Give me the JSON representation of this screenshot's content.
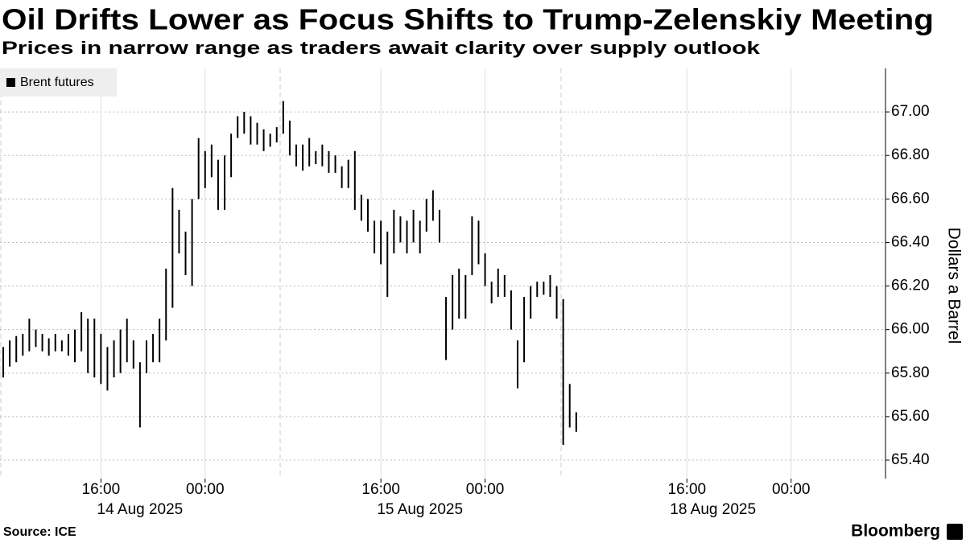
{
  "chart_data": {
    "type": "hilo",
    "title": "Oil Drifts Lower as Focus Shifts to Trump-Zelenskiy Meeting",
    "subtitle": "Prices in narrow range as traders await clarity over supply outlook",
    "y_label": "Dollars a Barrel",
    "source": "Source: ICE",
    "brand": "Bloomberg",
    "categories": [
      null,
      null,
      null,
      null,
      null,
      null,
      null,
      null,
      null,
      null,
      null,
      null,
      null,
      null,
      null,
      "16:00",
      null,
      null,
      null,
      null,
      null,
      null,
      null,
      null,
      null,
      null,
      null,
      null,
      null,
      null,
      null,
      "00:00",
      null,
      null,
      null,
      null,
      null,
      null,
      null,
      null,
      null,
      null,
      null,
      null,
      null,
      null,
      null,
      null,
      null,
      null,
      null,
      null,
      null,
      null,
      null,
      null,
      null,
      null,
      "16:00",
      null,
      null,
      null,
      null,
      null,
      null,
      null,
      null,
      null,
      null,
      null,
      null,
      null,
      null,
      null,
      "00:00",
      null,
      null,
      null,
      null,
      null,
      null,
      null,
      null,
      null,
      null,
      null,
      null,
      null,
      null,
      null,
      null,
      null,
      null,
      null,
      null,
      null,
      null,
      null,
      null,
      null,
      null,
      null,
      null,
      null,
      null,
      "16:00",
      null,
      null,
      null,
      null,
      null,
      null,
      null,
      null,
      null,
      null,
      null,
      null,
      null,
      null,
      null,
      "00:00",
      null,
      null,
      null,
      null,
      null,
      null,
      null,
      null,
      null,
      null,
      null,
      null,
      null,
      null
    ],
    "category_dates": [
      null,
      null,
      null,
      null,
      null,
      null,
      null,
      null,
      null,
      null,
      null,
      null,
      null,
      null,
      null,
      null,
      null,
      null,
      null,
      null,
      null,
      "14 Aug 2025",
      null,
      null,
      null,
      null,
      null,
      null,
      null,
      null,
      null,
      null,
      null,
      null,
      null,
      null,
      null,
      null,
      null,
      null,
      null,
      null,
      null,
      null,
      null,
      null,
      null,
      null,
      null,
      null,
      null,
      null,
      null,
      null,
      null,
      null,
      null,
      null,
      null,
      null,
      null,
      null,
      null,
      null,
      "15 Aug 2025",
      null,
      null,
      null,
      null,
      null,
      null,
      null,
      null,
      null,
      null,
      null,
      null,
      null,
      null,
      null,
      null,
      null,
      null,
      null,
      null,
      null,
      null,
      null,
      null,
      null,
      null,
      null,
      null,
      null,
      null,
      null,
      null,
      null,
      null,
      null,
      null,
      null,
      null,
      null,
      null,
      null,
      null,
      null,
      null,
      "18 Aug 2025",
      null,
      null,
      null,
      null,
      null,
      null,
      null,
      null,
      null,
      null,
      null,
      null,
      null,
      null,
      null,
      null,
      null,
      null,
      null,
      null,
      null,
      null,
      null,
      null,
      null,
      null
    ],
    "series": [
      {
        "name": "Brent futures",
        "color": "#000000",
        "high": [
          65.92,
          65.95,
          65.97,
          65.98,
          66.05,
          66.0,
          65.98,
          65.96,
          65.98,
          65.95,
          65.98,
          66.0,
          66.08,
          66.05,
          66.05,
          65.98,
          65.92,
          65.95,
          66.0,
          66.05,
          65.95,
          65.85,
          65.95,
          65.98,
          66.05,
          66.28,
          66.65,
          66.55,
          66.45,
          66.6,
          66.88,
          66.82,
          66.85,
          66.78,
          66.8,
          66.9,
          66.98,
          67.0,
          66.98,
          66.95,
          66.92,
          66.9,
          66.93,
          67.05,
          66.96,
          66.85,
          66.85,
          66.88,
          66.82,
          66.85,
          66.82,
          66.8,
          66.75,
          66.78,
          66.82,
          66.62,
          66.6,
          66.5,
          66.5,
          66.45,
          66.55,
          66.52,
          66.5,
          66.55,
          66.5,
          66.6,
          66.64,
          66.55,
          66.15,
          66.25,
          66.28,
          66.25,
          66.52,
          66.5,
          66.35,
          66.22,
          66.28,
          66.25,
          66.18,
          65.95,
          66.15,
          66.2,
          66.22,
          66.22,
          66.25,
          66.2,
          66.14,
          65.75,
          65.62,
          null,
          null,
          null,
          null,
          null,
          null,
          null,
          null,
          null,
          null,
          null,
          null,
          null,
          null,
          null,
          null,
          null,
          null,
          null,
          null,
          null,
          null,
          null,
          null,
          null,
          null,
          null,
          null,
          null,
          null,
          null,
          null,
          null,
          null,
          null,
          null,
          null,
          null,
          null,
          null,
          null,
          null,
          null,
          null,
          null,
          null,
          null
        ],
        "low": [
          65.78,
          65.83,
          65.85,
          65.88,
          65.9,
          65.92,
          65.9,
          65.88,
          65.9,
          65.9,
          65.88,
          65.85,
          65.9,
          65.8,
          65.78,
          65.75,
          65.72,
          65.78,
          65.8,
          65.85,
          65.82,
          65.55,
          65.8,
          65.85,
          65.85,
          65.95,
          66.1,
          66.35,
          66.25,
          66.2,
          66.6,
          66.65,
          66.7,
          66.55,
          66.55,
          66.7,
          66.88,
          66.9,
          66.85,
          66.85,
          66.82,
          66.84,
          66.86,
          66.9,
          66.8,
          66.75,
          66.73,
          66.75,
          66.76,
          66.75,
          66.72,
          66.72,
          66.65,
          66.65,
          66.55,
          66.5,
          66.45,
          66.35,
          66.3,
          66.15,
          66.35,
          66.4,
          66.35,
          66.4,
          66.35,
          66.45,
          66.5,
          66.4,
          65.86,
          66.0,
          66.05,
          66.05,
          66.25,
          66.3,
          66.2,
          66.12,
          66.15,
          66.15,
          66.0,
          65.73,
          65.85,
          66.05,
          66.15,
          66.16,
          66.15,
          66.05,
          65.47,
          65.55,
          65.53,
          null,
          null,
          null,
          null,
          null,
          null,
          null,
          null,
          null,
          null,
          null,
          null,
          null,
          null,
          null,
          null,
          null,
          null,
          null,
          null,
          null,
          null,
          null,
          null,
          null,
          null,
          null,
          null,
          null,
          null,
          null,
          null,
          null,
          null,
          null,
          null,
          null,
          null,
          null,
          null,
          null,
          null,
          null,
          null,
          null,
          null,
          null
        ]
      }
    ],
    "ylim": [
      65.315,
      67.2
    ],
    "yticks": [
      {
        "value": 65.4,
        "label": "65.40"
      },
      {
        "value": 65.6,
        "label": "65.60"
      },
      {
        "value": 65.8,
        "label": "65.80"
      },
      {
        "value": 66,
        "label": "66.00"
      },
      {
        "value": 66.2,
        "label": "66.20"
      },
      {
        "value": 66.4,
        "label": "66.40"
      },
      {
        "value": 66.6,
        "label": "66.60"
      },
      {
        "value": 66.8,
        "label": "66.80"
      },
      {
        "value": 67,
        "label": "67.00"
      }
    ],
    "grid": true,
    "legend": "top-left"
  }
}
